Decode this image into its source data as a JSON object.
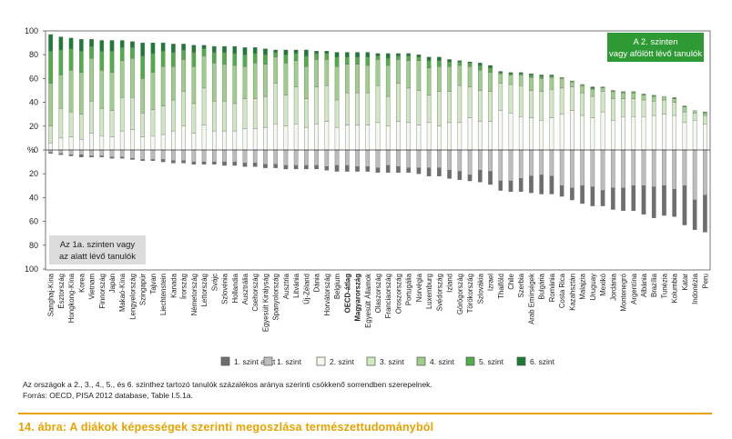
{
  "chart_data": {
    "type": "bar",
    "stacked": true,
    "diverging": true,
    "ylabel": "%",
    "ylim": [
      -100,
      100
    ],
    "yticks": [
      100,
      80,
      60,
      40,
      20,
      0,
      20,
      40,
      60,
      80,
      100
    ],
    "annotations": {
      "above": "A 2. szinten vagy afölött lévő tanulók",
      "below": "Az 1a. szinten vagy az alatt lévő tanulók"
    },
    "legend_position": "bottom",
    "colors": {
      "l1b_below": "#6e6e6e",
      "l1a": "#bdbdbd",
      "l2": "#f3f9ee",
      "l3": "#cfe8c1",
      "l4": "#9dcf8a",
      "l5": "#4fae45",
      "l6": "#1b7d35"
    },
    "series_names": [
      "1. szint alatt",
      "1. szint",
      "2. szint",
      "3. szint",
      "4. szint",
      "5. szint",
      "6. szint"
    ],
    "categories": [
      "Sanghaj-Kína",
      "Észtország",
      "Hongkong-Kína",
      "Korea",
      "Vietnam",
      "Finnország",
      "Japán",
      "Makaó-Kína",
      "Lengyelország",
      "Szingapúr",
      "Tajvan",
      "Liechtenstein",
      "Kanada",
      "Írország",
      "Németország",
      "Lettország",
      "Svájc",
      "Szlovénia",
      "Hollandia",
      "Ausztrália",
      "Csehország",
      "Egyesült Királyság",
      "Spanyolország",
      "Ausztria",
      "Litvánia",
      "Új-Zéland",
      "Dánia",
      "Horvátország",
      "Belgium",
      "OECD-átlag",
      "Magyarország",
      "Egyesült Államok",
      "Olaszország",
      "Franciaország",
      "Oroszország",
      "Portugália",
      "Norvégia",
      "Luxemburg",
      "Svédország",
      "Izland",
      "Görögország",
      "Törökország",
      "Szlovákia",
      "Izrael",
      "Thaiföld",
      "Chile",
      "Szerbia",
      "Arab Emírségek",
      "Bulgária",
      "Románia",
      "Costa Rica",
      "Kazahsztán",
      "Malajzia",
      "Uruguay",
      "Mexikó",
      "Jordánia",
      "Montenegró",
      "Argentína",
      "Albánia",
      "Brazília",
      "Tunézia",
      "Kolumbia",
      "Katar",
      "Indonézia",
      "Peru"
    ],
    "bold_categories": [
      "OECD-átlag",
      "Magyarország"
    ],
    "above_total": [
      97,
      95,
      94,
      93,
      93,
      92,
      92,
      92,
      91,
      90,
      90,
      90,
      89,
      89,
      88,
      88,
      87,
      87,
      87,
      86,
      86,
      85,
      84,
      84,
      84,
      84,
      83,
      83,
      82,
      82,
      82,
      82,
      81,
      81,
      81,
      81,
      80,
      78,
      78,
      76,
      75,
      74,
      73,
      71,
      66,
      65,
      65,
      64,
      63,
      63,
      61,
      58,
      55,
      53,
      53,
      50,
      49,
      49,
      47,
      46,
      45,
      44,
      37,
      33,
      32
    ],
    "level1_below": [
      1,
      1,
      1,
      2,
      1,
      1,
      1,
      1,
      1,
      1,
      1,
      2,
      2,
      2,
      2,
      2,
      2,
      3,
      3,
      3,
      3,
      3,
      3,
      3,
      3,
      3,
      3,
      3,
      5,
      5,
      4,
      4,
      4,
      6,
      5,
      4,
      5,
      7,
      7,
      7,
      7,
      5,
      10,
      11,
      8,
      9,
      11,
      14,
      16,
      15,
      9,
      10,
      15,
      16,
      13,
      18,
      19,
      21,
      24,
      26,
      25,
      23,
      33,
      25,
      31
    ],
    "level1": [
      2,
      3,
      4,
      4,
      5,
      5,
      6,
      6,
      7,
      8,
      8,
      8,
      9,
      9,
      10,
      10,
      10,
      10,
      10,
      11,
      11,
      12,
      12,
      13,
      13,
      13,
      13,
      14,
      13,
      13,
      14,
      14,
      15,
      13,
      14,
      15,
      15,
      15,
      15,
      17,
      18,
      21,
      17,
      18,
      26,
      26,
      24,
      22,
      21,
      22,
      30,
      32,
      30,
      31,
      34,
      32,
      32,
      30,
      30,
      31,
      30,
      33,
      30,
      42,
      38
    ],
    "level2": [
      6,
      10,
      11,
      9,
      14,
      12,
      11,
      16,
      17,
      11,
      12,
      13,
      16,
      20,
      14,
      21,
      16,
      16,
      16,
      18,
      18,
      19,
      22,
      20,
      22,
      19,
      22,
      24,
      19,
      21,
      21,
      21,
      23,
      20,
      24,
      23,
      21,
      23,
      20,
      23,
      23,
      27,
      24,
      24,
      33,
      31,
      28,
      27,
      25,
      27,
      30,
      33,
      29,
      27,
      32,
      25,
      28,
      28,
      28,
      29,
      30,
      29,
      23,
      25,
      22
    ],
    "level3": [
      14,
      25,
      21,
      21,
      27,
      23,
      22,
      28,
      27,
      20,
      22,
      24,
      26,
      29,
      25,
      31,
      25,
      25,
      23,
      25,
      25,
      26,
      34,
      26,
      31,
      24,
      31,
      30,
      23,
      27,
      27,
      27,
      31,
      25,
      32,
      29,
      29,
      23,
      29,
      26,
      31,
      26,
      26,
      25,
      23,
      24,
      26,
      23,
      24,
      24,
      22,
      20,
      19,
      18,
      17,
      18,
      15,
      15,
      14,
      12,
      12,
      11,
      9,
      6,
      7
    ],
    "level4": [
      36,
      28,
      35,
      35,
      36,
      32,
      32,
      31,
      33,
      29,
      31,
      33,
      28,
      27,
      31,
      27,
      32,
      31,
      32,
      27,
      30,
      27,
      22,
      27,
      22,
      27,
      23,
      22,
      28,
      24,
      24,
      23,
      22,
      26,
      20,
      23,
      25,
      23,
      21,
      21,
      17,
      17,
      17,
      16,
      8,
      8,
      9,
      11,
      11,
      10,
      8,
      4,
      6,
      6,
      3,
      6,
      5,
      5,
      4,
      4,
      3,
      3,
      4,
      2,
      2
    ]
  },
  "notes": {
    "line1": "Az országok a 2., 3., 4., 5., és 6. szinthez tartozó tanulók százalékos aránya szerinti csökkenő sorrendben szerepelnek.",
    "line2": "Forrás: OECD, PISA 2012 database, Table I.5.1a."
  },
  "figure_title": "14. ábra: A diákok képességek szerinti megoszlása természettudományból"
}
